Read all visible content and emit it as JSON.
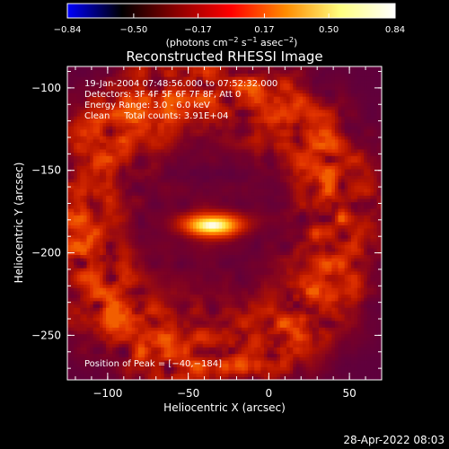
{
  "chart_data": {
    "type": "heatmap",
    "title": "Reconstructed RHESSI Image",
    "xlabel": "Heliocentric X (arcsec)",
    "ylabel": "Heliocentric Y (arcsec)",
    "xlim": [
      -125,
      70
    ],
    "ylim": [
      -277,
      -87
    ],
    "x_ticks": [
      -100,
      -50,
      0,
      50
    ],
    "x_tick_labels": [
      "−100",
      "−50",
      "0",
      "50"
    ],
    "y_ticks": [
      -100,
      -150,
      -200,
      -250
    ],
    "y_tick_labels": [
      "−100",
      "−150",
      "−200",
      "−250"
    ],
    "colorbar": {
      "range": [
        -0.84,
        0.84
      ],
      "ticks": [
        -0.84,
        -0.5,
        -0.17,
        0.17,
        0.5,
        0.84
      ],
      "tick_labels": [
        "−0.84",
        "−0.50",
        "−0.17",
        "0.17",
        "0.50",
        "0.84"
      ],
      "label": "(photons cm",
      "label_exp1": "−2",
      "label_mid": " s",
      "label_exp2": "−1",
      "label_end": " asec",
      "label_exp3": "−2",
      "label_close": ")",
      "colors": [
        "#0000ff",
        "#000000",
        "#8b0000",
        "#ff0000",
        "#ff8c00",
        "#ffff80",
        "#ffffff"
      ]
    },
    "annotations": [
      "19-Jan-2004 07:48:56.000 to 07:52:32.000",
      "Detectors: 3F 4F 5F 6F 7F 8F, Att 0",
      "Energy Range: 3.0 - 6.0 keV",
      "Clean     Total counts: 3.91E+04"
    ],
    "peak_label": "Position of Peak = [−40,−184]",
    "peak": [
      -40,
      -184
    ],
    "ring_center": [
      -38,
      -182
    ],
    "ring_radius": 80,
    "ring_width": 26,
    "ring_peak_value": 0.38,
    "background_value": -0.07,
    "peak_value": 0.84
  },
  "footer_timestamp": "28-Apr-2022 08:03"
}
